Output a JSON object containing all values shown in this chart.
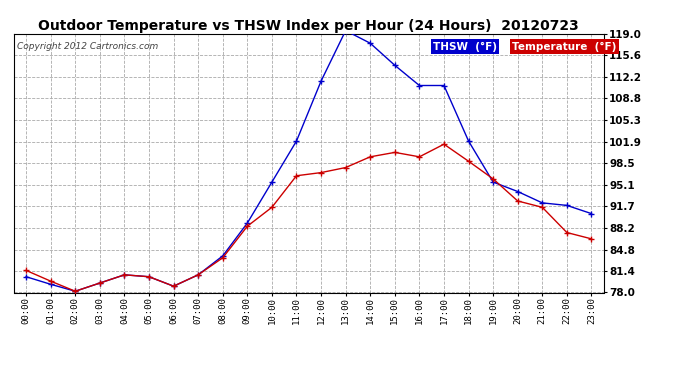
{
  "title": "Outdoor Temperature vs THSW Index per Hour (24 Hours)  20120723",
  "copyright": "Copyright 2012 Cartronics.com",
  "background_color": "#ffffff",
  "plot_bg_color": "#ffffff",
  "grid_color": "#aaaaaa",
  "thsw_color": "#0000cc",
  "temp_color": "#cc0000",
  "hours": [
    "00:00",
    "01:00",
    "02:00",
    "03:00",
    "04:00",
    "05:00",
    "06:00",
    "07:00",
    "08:00",
    "09:00",
    "10:00",
    "11:00",
    "12:00",
    "13:00",
    "14:00",
    "15:00",
    "16:00",
    "17:00",
    "18:00",
    "19:00",
    "20:00",
    "21:00",
    "22:00",
    "23:00"
  ],
  "thsw": [
    80.5,
    79.3,
    78.2,
    79.5,
    80.8,
    80.5,
    79.0,
    80.8,
    83.8,
    89.0,
    95.5,
    102.0,
    111.5,
    119.5,
    117.5,
    114.0,
    110.8,
    110.8,
    102.0,
    95.5,
    94.0,
    92.2,
    91.8,
    90.5
  ],
  "temperature": [
    81.5,
    79.8,
    78.2,
    79.5,
    80.8,
    80.5,
    79.0,
    80.8,
    83.5,
    88.5,
    91.5,
    96.5,
    97.0,
    97.8,
    99.5,
    100.2,
    99.5,
    101.5,
    98.8,
    96.0,
    92.5,
    91.5,
    87.5,
    86.5
  ],
  "ylim_min": 78.0,
  "ylim_max": 119.0,
  "yticks": [
    78.0,
    81.4,
    84.8,
    88.2,
    91.7,
    95.1,
    98.5,
    101.9,
    105.3,
    108.8,
    112.2,
    115.6,
    119.0
  ]
}
